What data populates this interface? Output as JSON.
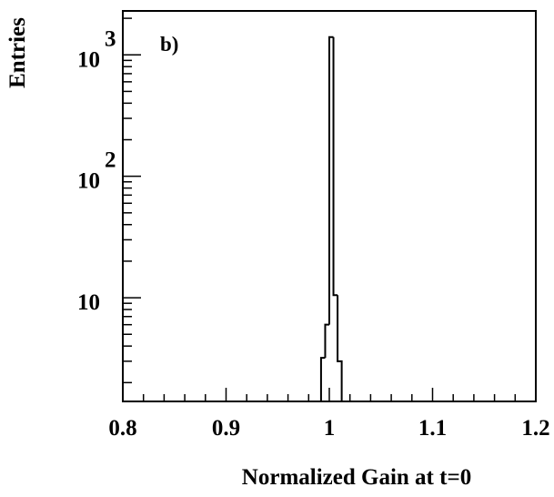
{
  "chart_data": {
    "type": "histogram",
    "panel_label": "b)",
    "xlabel": "Normalized Gain at t=0",
    "ylabel": "Entries",
    "xlim": [
      0.8,
      1.2
    ],
    "ylim": [
      1.4,
      2300
    ],
    "y_scale": "log",
    "grid": false,
    "legend": "none",
    "x_ticks": [
      {
        "value": 0.8,
        "label": "0.8"
      },
      {
        "value": 0.9,
        "label": "0.9"
      },
      {
        "value": 1.0,
        "label": "1"
      },
      {
        "value": 1.1,
        "label": "1.1"
      },
      {
        "value": 1.2,
        "label": "1.2"
      }
    ],
    "y_major_ticks": [
      {
        "value": 10,
        "base": "10",
        "exponent": ""
      },
      {
        "value": 100,
        "base": "10",
        "exponent": "2"
      },
      {
        "value": 1000,
        "base": "10",
        "exponent": "3"
      }
    ],
    "bins": [
      {
        "x0": 0.992,
        "x1": 0.996,
        "value": 3.2
      },
      {
        "x0": 0.996,
        "x1": 1.0,
        "value": 6
      },
      {
        "x0": 1.0,
        "x1": 1.004,
        "value": 1400
      },
      {
        "x0": 1.004,
        "x1": 1.008,
        "value": 10.5
      },
      {
        "x0": 1.008,
        "x1": 1.012,
        "value": 3.0
      }
    ],
    "colors": {
      "line": "#000000",
      "background": "#ffffff"
    }
  }
}
